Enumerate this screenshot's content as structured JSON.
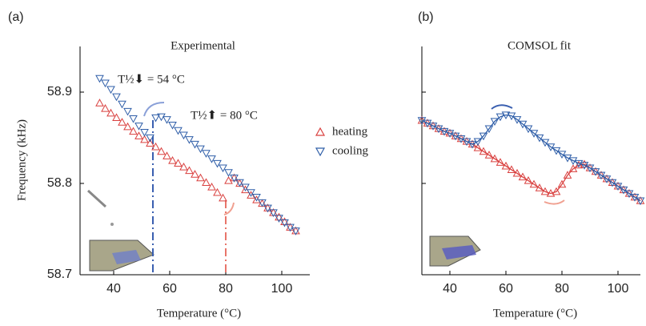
{
  "chart_data": [
    {
      "type": "scatter",
      "panel": "(a)",
      "title": "Experimental",
      "xlabel": "Temperature (°C)",
      "ylabel": "Frequency (kHz)",
      "xlim": [
        28,
        110
      ],
      "ylim": [
        58.7,
        58.95
      ],
      "xticks": [
        40,
        60,
        80,
        100
      ],
      "yticks": [
        58.7,
        58.8,
        58.9
      ],
      "legend": "right",
      "x": [
        35,
        37,
        39,
        41,
        43,
        45,
        47,
        49,
        51,
        53,
        55,
        57,
        59,
        61,
        63,
        65,
        67,
        69,
        71,
        73,
        75,
        77,
        79,
        81,
        83,
        85,
        87,
        89,
        91,
        93,
        95,
        97,
        99,
        101,
        103,
        105
      ],
      "series": [
        {
          "name": "heating",
          "color": "#d9403f",
          "marker": "triangle-up",
          "values": [
            58.888,
            58.882,
            58.877,
            58.872,
            58.867,
            58.862,
            58.857,
            58.852,
            58.848,
            58.844,
            58.84,
            58.835,
            58.83,
            58.825,
            58.822,
            58.818,
            58.814,
            58.81,
            58.806,
            58.801,
            58.796,
            58.79,
            58.784,
            58.803,
            58.806,
            58.8,
            58.793,
            58.787,
            58.782,
            58.778,
            58.773,
            58.768,
            58.763,
            58.758,
            58.752,
            58.748
          ]
        },
        {
          "name": "cooling",
          "color": "#2f5ea8",
          "marker": "triangle-down",
          "values": [
            58.915,
            58.91,
            58.903,
            58.895,
            58.887,
            58.879,
            58.871,
            58.863,
            58.856,
            58.85,
            58.872,
            58.873,
            58.87,
            58.864,
            58.858,
            58.853,
            58.848,
            58.843,
            58.838,
            58.833,
            58.827,
            58.822,
            58.817,
            58.812,
            58.806,
            58.801,
            58.796,
            58.79,
            58.785,
            58.779,
            58.773,
            58.768,
            58.762,
            58.757,
            58.752,
            58.748
          ]
        }
      ],
      "annotations": [
        {
          "text": "T½⬇ = 54 °C",
          "x": 54,
          "color": "#3a5fb0"
        },
        {
          "text": "T½⬆ = 80 °C",
          "x": 80,
          "color": "#e8756a"
        }
      ]
    },
    {
      "type": "line",
      "panel": "(b)",
      "title": "COMSOL fit",
      "xlabel": "Temperature (°C)",
      "xlim": [
        30,
        108
      ],
      "ylim": [
        58.7,
        58.95
      ],
      "xticks": [
        40,
        60,
        80,
        100
      ],
      "x": [
        30,
        32,
        34,
        36,
        38,
        40,
        42,
        44,
        46,
        48,
        50,
        52,
        54,
        56,
        58,
        60,
        62,
        64,
        66,
        68,
        70,
        72,
        74,
        76,
        78,
        80,
        82,
        84,
        86,
        88,
        90,
        92,
        94,
        96,
        98,
        100,
        102,
        104,
        106,
        108
      ],
      "series": [
        {
          "color": "#d9403f",
          "marker": "triangle-up",
          "values": [
            58.869,
            58.866,
            58.863,
            58.86,
            58.857,
            58.855,
            58.852,
            58.849,
            58.846,
            58.843,
            58.839,
            58.835,
            58.831,
            58.827,
            58.823,
            58.819,
            58.815,
            58.811,
            58.807,
            58.803,
            58.799,
            58.795,
            58.791,
            58.789,
            58.791,
            58.799,
            58.809,
            58.816,
            58.82,
            58.821,
            58.817,
            58.813,
            58.809,
            58.805,
            58.801,
            58.797,
            58.793,
            58.789,
            58.785,
            58.781
          ]
        },
        {
          "color": "#2f5ea8",
          "marker": "triangle-down",
          "values": [
            58.869,
            58.866,
            58.863,
            58.86,
            58.857,
            58.855,
            58.852,
            58.849,
            58.846,
            58.843,
            58.846,
            58.852,
            58.86,
            58.868,
            58.873,
            58.875,
            58.874,
            58.87,
            58.865,
            58.86,
            58.855,
            58.85,
            58.845,
            58.84,
            58.836,
            58.832,
            58.828,
            58.825,
            58.822,
            58.82,
            58.817,
            58.813,
            58.809,
            58.805,
            58.801,
            58.797,
            58.793,
            58.789,
            58.785,
            58.781
          ]
        }
      ]
    }
  ]
}
